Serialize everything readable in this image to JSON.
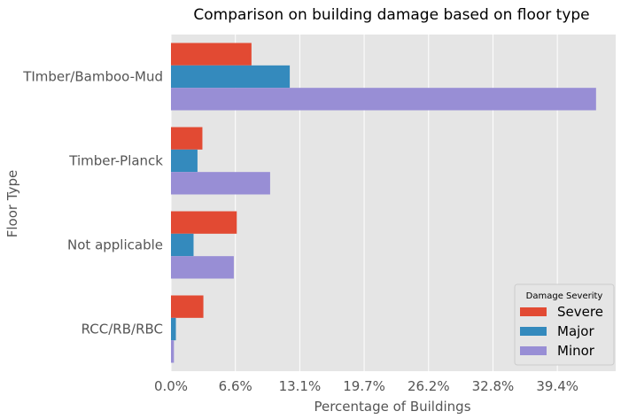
{
  "chart_data": {
    "type": "bar",
    "orientation": "horizontal",
    "title": "Comparison on building damage based on floor type",
    "xlabel": "Percentage of Buildings",
    "ylabel": "Floor Type",
    "categories": [
      "TImber/Bamboo-Mud",
      "Timber-Planck",
      "Not applicable",
      "RCC/RB/RBC"
    ],
    "series": [
      {
        "name": "Severe",
        "color": "#E24A33",
        "values": [
          8.2,
          3.2,
          6.7,
          3.3
        ]
      },
      {
        "name": "Major",
        "color": "#348ABD",
        "values": [
          12.1,
          2.7,
          2.3,
          0.5
        ]
      },
      {
        "name": "Minor",
        "color": "#988ED5",
        "values": [
          43.3,
          10.1,
          6.4,
          0.3
        ]
      }
    ],
    "xticks": [
      0,
      6.56,
      13.12,
      19.68,
      26.24,
      32.8,
      39.36
    ],
    "xtick_labels": [
      "0.0%",
      "6.6%",
      "13.1%",
      "19.7%",
      "26.2%",
      "32.8%",
      "39.4%"
    ],
    "xlim": [
      0,
      45.3
    ],
    "grid": true,
    "legend": {
      "title": "Damage Severity",
      "position": "lower-right"
    }
  }
}
